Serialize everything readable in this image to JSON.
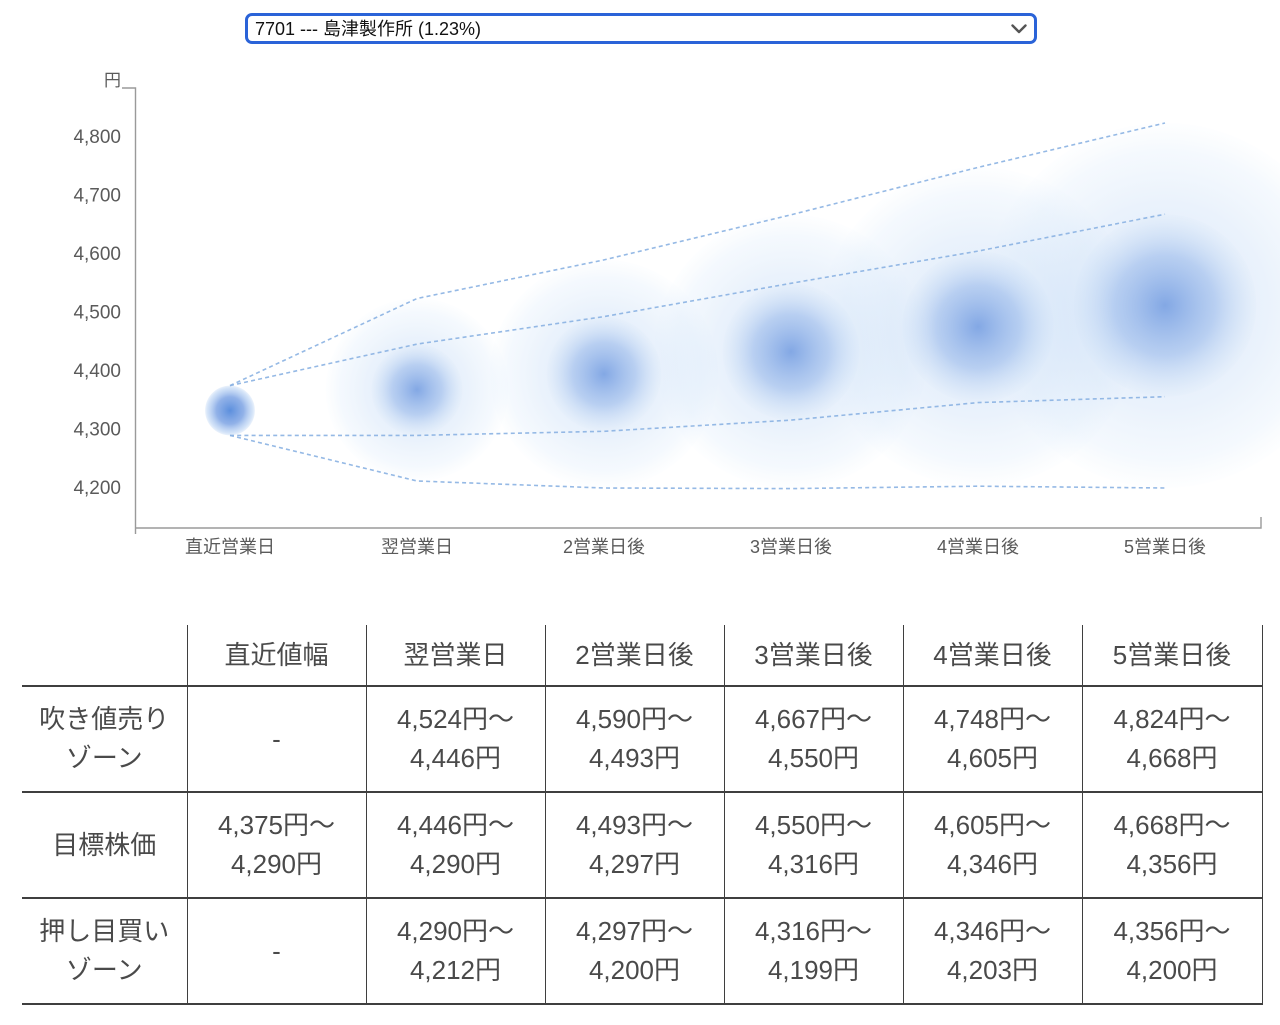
{
  "stock_selector": {
    "selected_option": "7701 --- 島津製作所 (1.23%)"
  },
  "chart_data": {
    "type": "bubble-fan",
    "title": "",
    "unit_label": "円",
    "x_categories": [
      "直近営業日",
      "翌営業日",
      "2営業日後",
      "3営業日後",
      "4営業日後",
      "5営業日後"
    ],
    "y_ticks": [
      {
        "value": 4800,
        "label": "4,800"
      },
      {
        "value": 4700,
        "label": "4,700"
      },
      {
        "value": 4600,
        "label": "4,600"
      },
      {
        "value": 4500,
        "label": "4,500"
      },
      {
        "value": 4400,
        "label": "4,400"
      },
      {
        "value": 4300,
        "label": "4,300"
      },
      {
        "value": 4200,
        "label": "4,200"
      }
    ],
    "y_axis_range": [
      4130,
      4885
    ],
    "grid": false,
    "legend": "none",
    "series": {
      "sell_zone_high": [
        null,
        4524,
        4590,
        4667,
        4748,
        4824
      ],
      "sell_zone_low": [
        null,
        4446,
        4493,
        4550,
        4605,
        4668
      ],
      "target_high": [
        4375,
        4446,
        4493,
        4550,
        4605,
        4668
      ],
      "target_low": [
        4290,
        4290,
        4297,
        4316,
        4346,
        4356
      ],
      "buy_zone_high": [
        null,
        4290,
        4297,
        4316,
        4346,
        4356
      ],
      "buy_zone_low": [
        null,
        4212,
        4200,
        4199,
        4203,
        4200
      ]
    },
    "colors": {
      "dashed_line": "#8ab1e2",
      "axis": "#9a9a9a",
      "tick_text": "#5a5a5a",
      "bubble_core_center": "#5c8fdd",
      "bubble_core_edge": "#afccf2",
      "bubble_inner_center": "#6c97df",
      "bubble_outer": "#aac8f0",
      "select_border": "#2a63d8"
    }
  },
  "table": {
    "headers": [
      "",
      "直近値幅",
      "翌営業日",
      "2営業日後",
      "3営業日後",
      "4営業日後",
      "5営業日後"
    ],
    "rows": [
      {
        "label": "吹き値売り\nゾーン",
        "cells": [
          "-",
          "4,524円～\n4,446円",
          "4,590円～\n4,493円",
          "4,667円～\n4,550円",
          "4,748円～\n4,605円",
          "4,824円～\n4,668円"
        ]
      },
      {
        "label": "目標株価",
        "cells": [
          "4,375円～\n4,290円",
          "4,446円～\n4,290円",
          "4,493円～\n4,297円",
          "4,550円～\n4,316円",
          "4,605円～\n4,346円",
          "4,668円～\n4,356円"
        ]
      },
      {
        "label": "押し目買い\nゾーン",
        "cells": [
          "-",
          "4,290円～\n4,212円",
          "4,297円～\n4,200円",
          "4,316円～\n4,199円",
          "4,346円～\n4,203円",
          "4,356円～\n4,200円"
        ]
      }
    ]
  }
}
